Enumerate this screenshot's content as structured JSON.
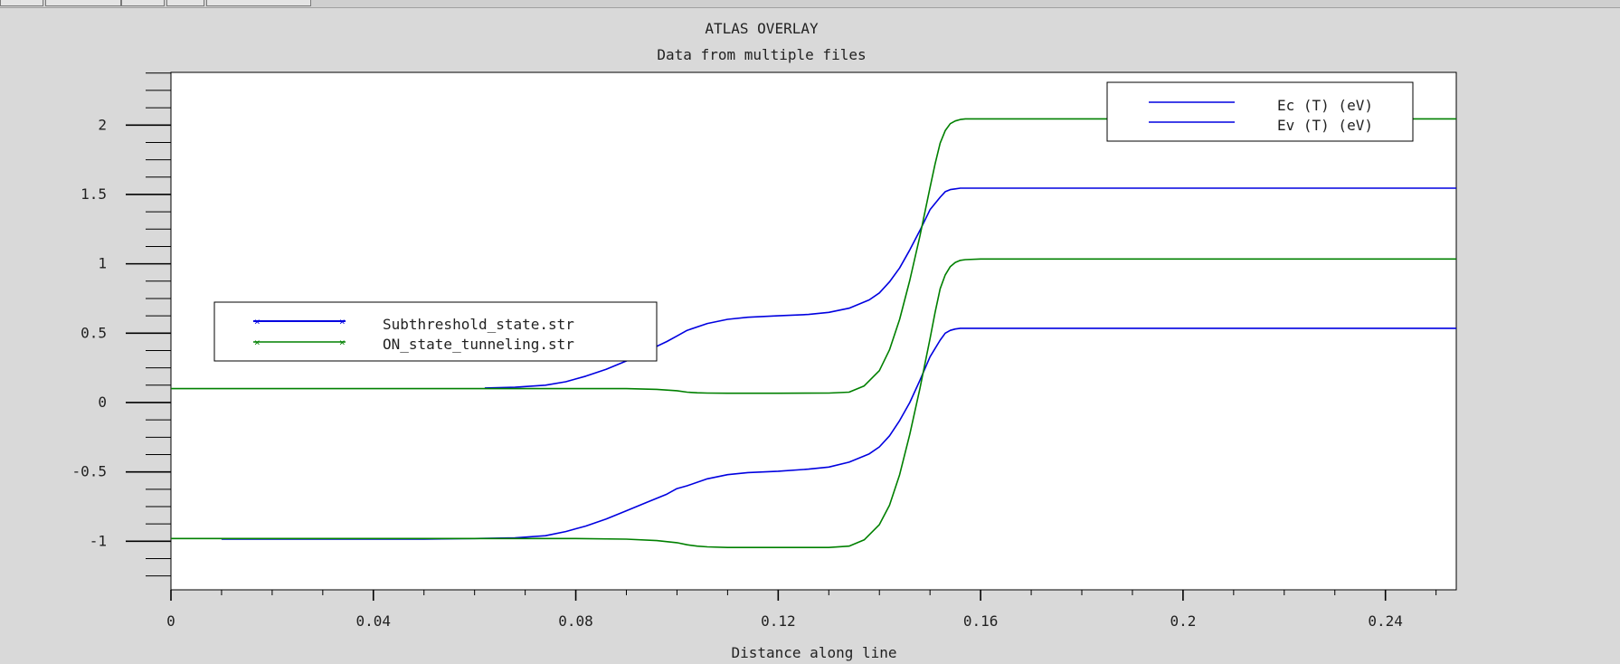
{
  "chart_data": {
    "type": "line",
    "title": "ATLAS OVERLAY",
    "subtitle": "Data from multiple files",
    "xlabel": "Distance along line",
    "ylabel": "",
    "xlim": [
      0,
      0.254
    ],
    "ylim": [
      -1.35,
      2.38
    ],
    "xticks": [
      0,
      0.04,
      0.08,
      0.12,
      0.16,
      0.2,
      0.24
    ],
    "xtick_labels": [
      "0",
      "0.04",
      "0.08",
      "0.12",
      "0.16",
      "0.2",
      "0.24"
    ],
    "yticks": [
      -1,
      -0.5,
      0,
      0.5,
      1,
      1.5,
      2
    ],
    "ytick_labels": [
      "-1",
      "-0.5",
      "0",
      "0.5",
      "1",
      "1.5",
      "2"
    ],
    "grid": false,
    "file_legend": {
      "placement": "middle-left",
      "entries": [
        {
          "label": "Subthreshold_state.str",
          "color": "#0000e0"
        },
        {
          "label": "ON_state_tunneling.str",
          "color": "#008000"
        }
      ]
    },
    "quantity_legend": {
      "placement": "top-right",
      "entries": [
        {
          "label": "Ec (T) (eV)",
          "color": "#0000e0"
        },
        {
          "label": "Ev (T) (eV)",
          "color": "#0000e0"
        }
      ]
    },
    "series": [
      {
        "file": "Subthreshold_state.str",
        "quantity": "Ec (T) (eV)",
        "color": "#0000e0",
        "x": [
          0.062,
          0.068,
          0.074,
          0.078,
          0.082,
          0.086,
          0.09,
          0.094,
          0.098,
          0.1,
          0.102,
          0.106,
          0.11,
          0.114,
          0.12,
          0.126,
          0.13,
          0.134,
          0.138,
          0.14,
          0.142,
          0.144,
          0.146,
          0.148,
          0.15,
          0.152,
          0.153,
          0.154,
          0.155,
          0.156,
          0.158,
          0.254
        ],
        "y": [
          0.105,
          0.11,
          0.125,
          0.15,
          0.19,
          0.24,
          0.3,
          0.37,
          0.44,
          0.48,
          0.52,
          0.57,
          0.6,
          0.615,
          0.625,
          0.635,
          0.65,
          0.68,
          0.74,
          0.79,
          0.87,
          0.97,
          1.1,
          1.24,
          1.39,
          1.48,
          1.52,
          1.535,
          1.54,
          1.545,
          1.545,
          1.545
        ]
      },
      {
        "file": "Subthreshold_state.str",
        "quantity": "Ev (T) (eV)",
        "color": "#0000e0",
        "x": [
          0.01,
          0.03,
          0.05,
          0.06,
          0.068,
          0.074,
          0.078,
          0.082,
          0.086,
          0.09,
          0.094,
          0.098,
          0.1,
          0.102,
          0.106,
          0.11,
          0.114,
          0.12,
          0.126,
          0.13,
          0.134,
          0.138,
          0.14,
          0.142,
          0.144,
          0.146,
          0.148,
          0.15,
          0.152,
          0.153,
          0.154,
          0.155,
          0.156,
          0.158,
          0.254
        ],
        "y": [
          -0.985,
          -0.985,
          -0.985,
          -0.98,
          -0.975,
          -0.96,
          -0.93,
          -0.89,
          -0.84,
          -0.78,
          -0.72,
          -0.66,
          -0.62,
          -0.6,
          -0.55,
          -0.52,
          -0.505,
          -0.495,
          -0.48,
          -0.465,
          -0.43,
          -0.37,
          -0.32,
          -0.24,
          -0.13,
          0.0,
          0.16,
          0.33,
          0.45,
          0.5,
          0.52,
          0.53,
          0.535,
          0.535,
          0.535
        ]
      },
      {
        "file": "ON_state_tunneling.str",
        "quantity": "Ec (T) (eV)",
        "color": "#008000",
        "x": [
          0,
          0.02,
          0.04,
          0.06,
          0.08,
          0.09,
          0.096,
          0.1,
          0.102,
          0.104,
          0.106,
          0.11,
          0.12,
          0.13,
          0.134,
          0.137,
          0.14,
          0.142,
          0.144,
          0.146,
          0.148,
          0.15,
          0.151,
          0.152,
          0.153,
          0.154,
          0.155,
          0.156,
          0.157,
          0.16,
          0.254
        ],
        "y": [
          0.1,
          0.1,
          0.1,
          0.1,
          0.1,
          0.1,
          0.095,
          0.085,
          0.075,
          0.07,
          0.068,
          0.067,
          0.067,
          0.068,
          0.075,
          0.12,
          0.23,
          0.38,
          0.6,
          0.88,
          1.2,
          1.55,
          1.72,
          1.87,
          1.96,
          2.01,
          2.03,
          2.04,
          2.045,
          2.045,
          2.045
        ]
      },
      {
        "file": "ON_state_tunneling.str",
        "quantity": "Ev (T) (eV)",
        "color": "#008000",
        "x": [
          0,
          0.02,
          0.04,
          0.06,
          0.08,
          0.09,
          0.096,
          0.1,
          0.102,
          0.104,
          0.106,
          0.11,
          0.12,
          0.13,
          0.134,
          0.137,
          0.14,
          0.142,
          0.144,
          0.146,
          0.148,
          0.15,
          0.151,
          0.152,
          0.153,
          0.154,
          0.155,
          0.156,
          0.157,
          0.16,
          0.254
        ],
        "y": [
          -0.98,
          -0.98,
          -0.98,
          -0.98,
          -0.98,
          -0.985,
          -0.995,
          -1.01,
          -1.025,
          -1.035,
          -1.04,
          -1.045,
          -1.045,
          -1.045,
          -1.035,
          -0.99,
          -0.88,
          -0.74,
          -0.52,
          -0.23,
          0.1,
          0.46,
          0.65,
          0.82,
          0.92,
          0.98,
          1.01,
          1.025,
          1.03,
          1.035,
          1.035
        ]
      }
    ]
  }
}
